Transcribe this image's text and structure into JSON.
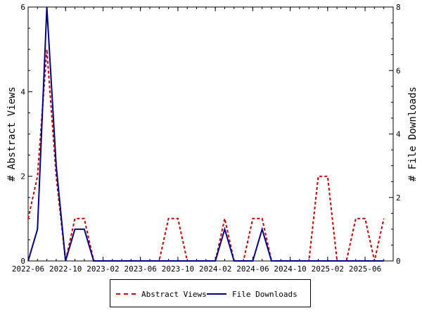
{
  "chart_data": {
    "type": "line",
    "x_tick_labels": [
      "2022-06",
      "2022-10",
      "2023-02",
      "2023-06",
      "2023-10",
      "2024-02",
      "2024-06",
      "2024-10",
      "2025-02",
      "2025-06"
    ],
    "y_left": {
      "label": "# Abstract Views",
      "range": [
        0,
        6
      ],
      "ticks": [
        "0",
        "2",
        "4",
        "6"
      ]
    },
    "y_right": {
      "label": "# File Downloads",
      "range": [
        0,
        8
      ],
      "ticks": [
        "0",
        "2",
        "4",
        "6",
        "8"
      ]
    },
    "x_range": [
      "2022-06",
      "2025-09"
    ],
    "series": [
      {
        "name": "Abstract Views",
        "axis": "left",
        "color": "#cc0000",
        "style": "dashed",
        "points": [
          [
            "2022-06",
            1
          ],
          [
            "2022-07",
            2
          ],
          [
            "2022-08",
            5
          ],
          [
            "2022-09",
            2
          ],
          [
            "2022-10",
            0
          ],
          [
            "2022-11",
            1
          ],
          [
            "2022-12",
            1
          ],
          [
            "2023-01",
            0
          ],
          [
            "2023-02",
            0
          ],
          [
            "2023-03",
            0
          ],
          [
            "2023-04",
            0
          ],
          [
            "2023-05",
            0
          ],
          [
            "2023-06",
            0
          ],
          [
            "2023-07",
            0
          ],
          [
            "2023-08",
            0
          ],
          [
            "2023-09",
            1
          ],
          [
            "2023-10",
            1
          ],
          [
            "2023-11",
            0
          ],
          [
            "2023-12",
            0
          ],
          [
            "2024-01",
            0
          ],
          [
            "2024-02",
            0
          ],
          [
            "2024-03",
            1
          ],
          [
            "2024-04",
            0
          ],
          [
            "2024-05",
            0
          ],
          [
            "2024-06",
            1
          ],
          [
            "2024-07",
            1
          ],
          [
            "2024-08",
            0
          ],
          [
            "2024-09",
            0
          ],
          [
            "2024-10",
            0
          ],
          [
            "2024-11",
            0
          ],
          [
            "2024-12",
            0
          ],
          [
            "2025-01",
            2
          ],
          [
            "2025-02",
            2
          ],
          [
            "2025-03",
            0
          ],
          [
            "2025-04",
            0
          ],
          [
            "2025-05",
            1
          ],
          [
            "2025-06",
            1
          ],
          [
            "2025-07",
            0
          ],
          [
            "2025-08",
            1
          ]
        ]
      },
      {
        "name": "File Downloads",
        "axis": "right",
        "color": "#00008b",
        "style": "solid",
        "points": [
          [
            "2022-06",
            0
          ],
          [
            "2022-07",
            1
          ],
          [
            "2022-08",
            8
          ],
          [
            "2022-09",
            3
          ],
          [
            "2022-10",
            0
          ],
          [
            "2022-11",
            1
          ],
          [
            "2022-12",
            1
          ],
          [
            "2023-01",
            0
          ],
          [
            "2023-02",
            0
          ],
          [
            "2023-03",
            0
          ],
          [
            "2023-04",
            0
          ],
          [
            "2023-05",
            0
          ],
          [
            "2023-06",
            0
          ],
          [
            "2023-07",
            0
          ],
          [
            "2023-08",
            0
          ],
          [
            "2023-09",
            0
          ],
          [
            "2023-10",
            0
          ],
          [
            "2023-11",
            0
          ],
          [
            "2023-12",
            0
          ],
          [
            "2024-01",
            0
          ],
          [
            "2024-02",
            0
          ],
          [
            "2024-03",
            1
          ],
          [
            "2024-04",
            0
          ],
          [
            "2024-05",
            0
          ],
          [
            "2024-06",
            0
          ],
          [
            "2024-07",
            1
          ],
          [
            "2024-08",
            0
          ],
          [
            "2024-09",
            0
          ],
          [
            "2024-10",
            0
          ],
          [
            "2024-11",
            0
          ],
          [
            "2024-12",
            0
          ],
          [
            "2025-01",
            0
          ],
          [
            "2025-02",
            0
          ],
          [
            "2025-03",
            0
          ],
          [
            "2025-04",
            0
          ],
          [
            "2025-05",
            0
          ],
          [
            "2025-06",
            0
          ],
          [
            "2025-07",
            0
          ],
          [
            "2025-08",
            0
          ]
        ]
      }
    ],
    "legend": {
      "placement": "bottom",
      "entries": [
        "Abstract Views",
        "File Downloads"
      ]
    },
    "grid": false
  }
}
